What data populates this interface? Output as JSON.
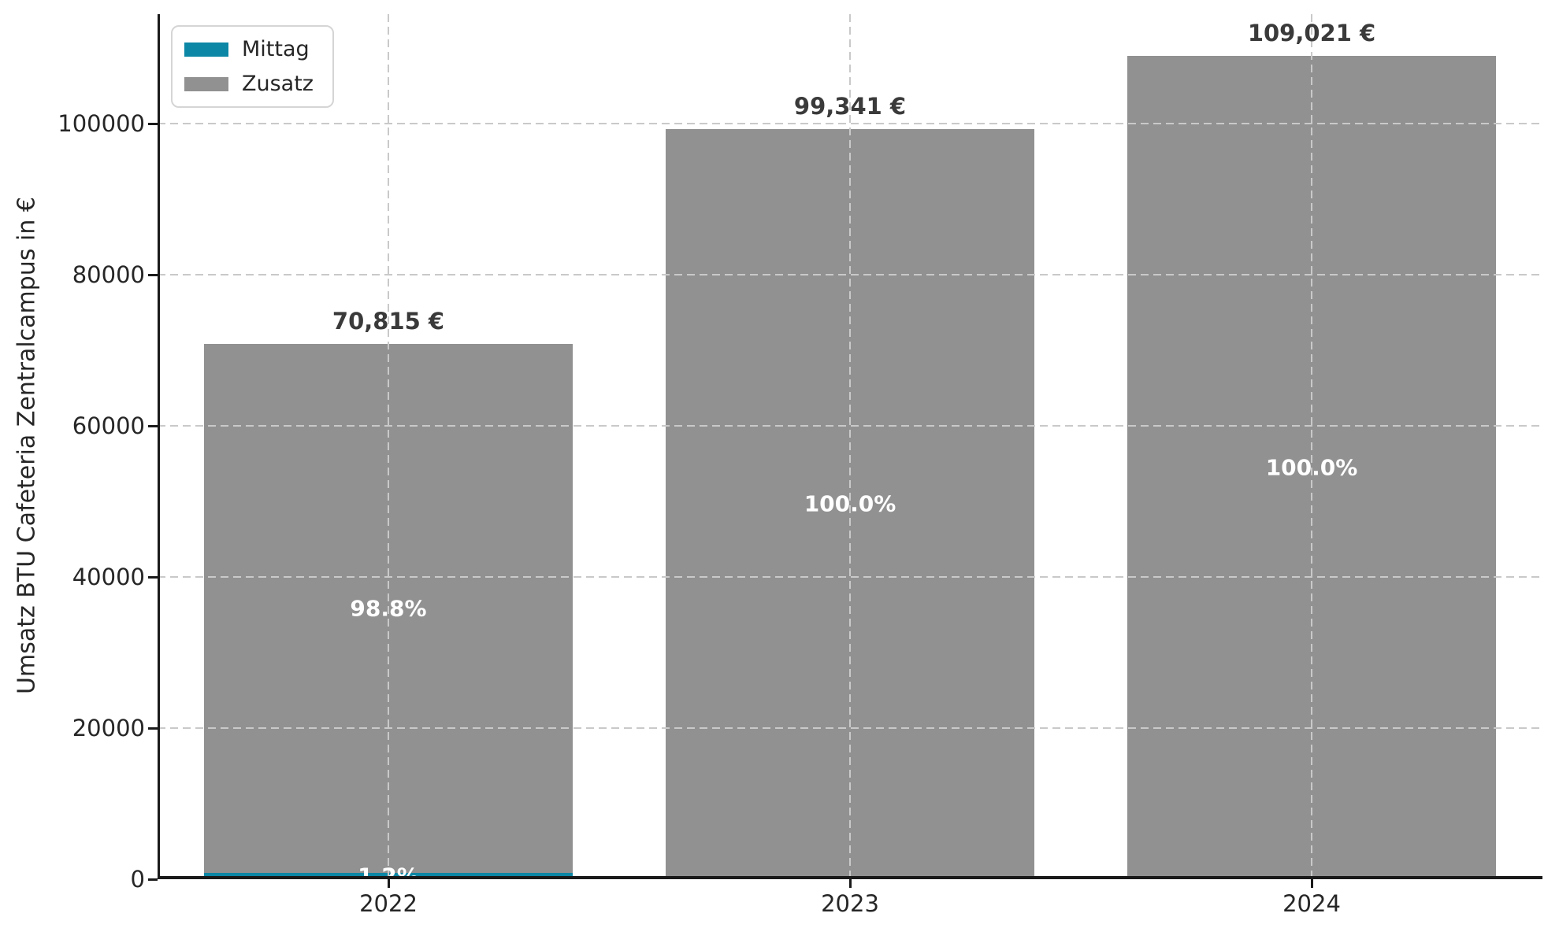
{
  "axes": {
    "ylabel": "Umsatz BTU Cafeteria Zentralcampus in €",
    "yticks": [
      0,
      20000,
      40000,
      60000,
      80000,
      100000
    ],
    "ytick_labels": [
      "0",
      "20000",
      "40000",
      "60000",
      "80000",
      "100000"
    ],
    "xtick_labels": [
      "2022",
      "2023",
      "2024"
    ]
  },
  "legend": {
    "items": [
      {
        "label": "Mittag",
        "color": "#0c87a5"
      },
      {
        "label": "Zusatz",
        "color": "#919191"
      }
    ]
  },
  "chart_data": {
    "type": "bar",
    "stacked": true,
    "categories": [
      "2022",
      "2023",
      "2024"
    ],
    "series": [
      {
        "name": "Mittag",
        "color": "#0c87a5",
        "values": [
          850,
          0,
          0
        ],
        "percent_labels": [
          "1.2%",
          "",
          ""
        ]
      },
      {
        "name": "Zusatz",
        "color": "#919191",
        "values": [
          69965,
          99341,
          109021
        ],
        "percent_labels": [
          "98.8%",
          "100.0%",
          "100.0%"
        ]
      }
    ],
    "totals": [
      70815,
      99341,
      109021
    ],
    "total_labels": [
      "70,815 €",
      "99,341 €",
      "109,021 €"
    ],
    "title": "",
    "xlabel": "",
    "ylabel": "Umsatz BTU Cafeteria Zentralcampus in €",
    "ylim": [
      0,
      114500
    ],
    "grid": true,
    "grid_style": "dashed",
    "grid_color": "#c9c9c9",
    "legend_position": "upper left",
    "bar_width_fraction": 0.8
  }
}
